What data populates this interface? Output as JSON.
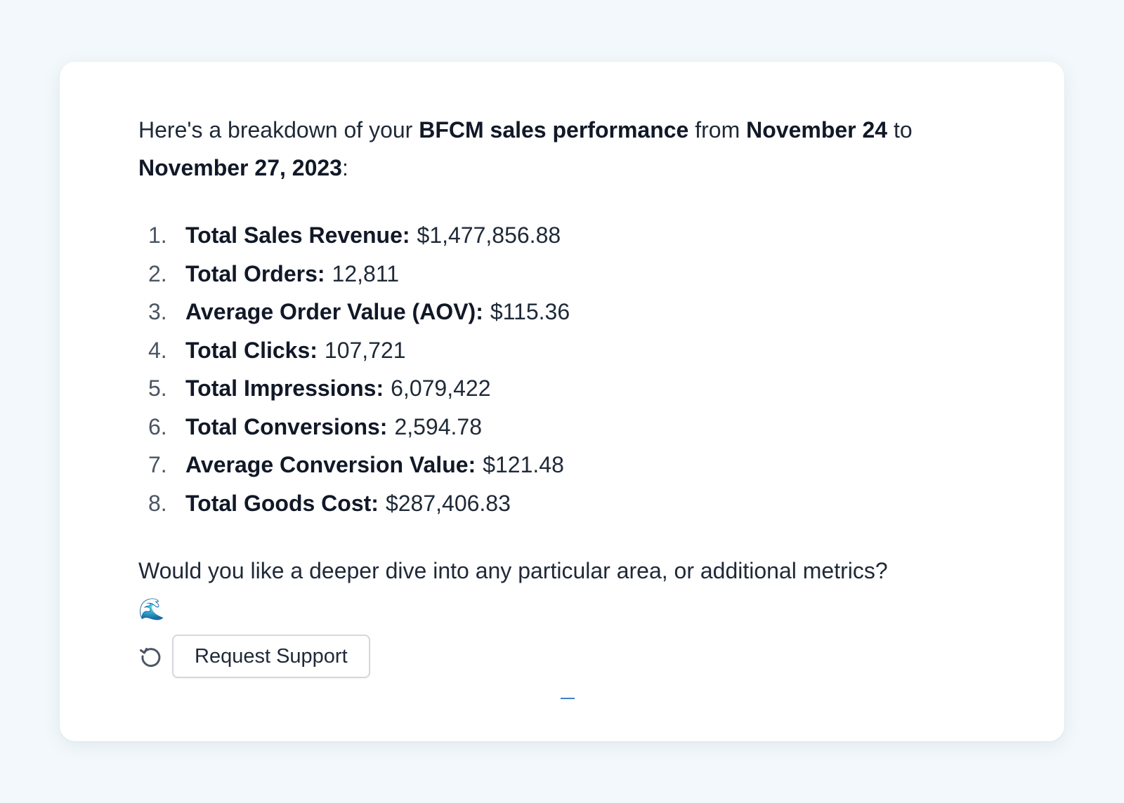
{
  "message": {
    "intro": {
      "p1": "Here's a breakdown of your ",
      "b1": "BFCM sales performance",
      "p2": " from ",
      "b2": "November 24",
      "p3": " to ",
      "b3": "November 27, 2023",
      "p4": ":"
    },
    "metrics": [
      {
        "num": "1.",
        "label": "Total Sales Revenue:",
        "value": "$1,477,856.88"
      },
      {
        "num": "2.",
        "label": "Total Orders:",
        "value": "12,811"
      },
      {
        "num": "3.",
        "label": "Average Order Value (AOV):",
        "value": "$115.36"
      },
      {
        "num": "4.",
        "label": "Total Clicks:",
        "value": "107,721"
      },
      {
        "num": "5.",
        "label": "Total Impressions:",
        "value": "6,079,422"
      },
      {
        "num": "6.",
        "label": "Total Conversions:",
        "value": "2,594.78"
      },
      {
        "num": "7.",
        "label": "Average Conversion Value:",
        "value": "$121.48"
      },
      {
        "num": "8.",
        "label": "Total Goods Cost:",
        "value": "$287,406.83"
      }
    ],
    "outro": "Would you like a deeper dive into any particular area, or additional metrics?",
    "emoji": "🌊"
  },
  "actions": {
    "refresh_icon": "refresh-icon",
    "support_label": "Request Support"
  },
  "colors": {
    "background": "#f2f8fb",
    "card": "#ffffff",
    "text": "#1f2937",
    "muted": "#4b5563",
    "accent": "#3b82c4"
  }
}
